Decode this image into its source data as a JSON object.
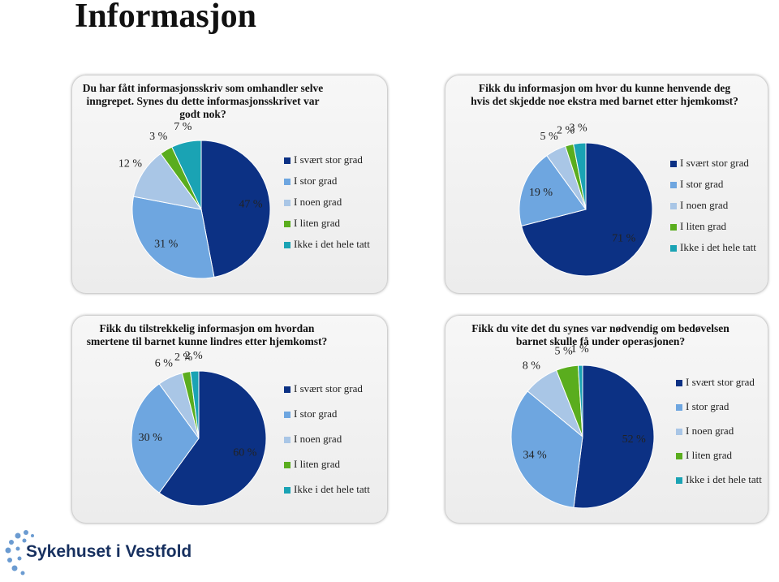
{
  "title": "Informasjon",
  "logo": "Sykehuset i Vestfold",
  "chart_data": [
    {
      "type": "pie",
      "title": "Du har fått informasjonsskriv som omhandler selve inngrepet. Synes du dette informasjonsskrivet var godt nok?",
      "categories": [
        "I svært stor grad",
        "I stor grad",
        "I noen grad",
        "I liten grad",
        "Ikke i det hele tatt"
      ],
      "values": [
        47,
        31,
        12,
        3,
        7
      ],
      "value_labels": [
        "47 %",
        "31 %",
        "12 %",
        "3 %",
        "7 %"
      ],
      "colors": [
        "#0c3184",
        "#6ea6e0",
        "#a9c6e6",
        "#5aad1e",
        "#1aa3b4"
      ]
    },
    {
      "type": "pie",
      "title": "Fikk du informasjon om hvor du kunne henvende deg hvis det skjedde noe ekstra med barnet etter hjemkomst?",
      "categories": [
        "I svært stor grad",
        "I stor grad",
        "I noen grad",
        "I liten grad",
        "Ikke i det hele tatt"
      ],
      "values": [
        71,
        19,
        5,
        2,
        3
      ],
      "value_labels": [
        "71 %",
        "19 %",
        "5 %",
        "2 %",
        "3 %"
      ],
      "colors": [
        "#0c3184",
        "#6ea6e0",
        "#a9c6e6",
        "#5aad1e",
        "#1aa3b4"
      ]
    },
    {
      "type": "pie",
      "title": "Fikk du tilstrekkelig informasjon om hvordan smertene til barnet kunne lindres etter hjemkomst?",
      "categories": [
        "I svært stor grad",
        "I stor grad",
        "I noen grad",
        "I liten grad",
        "Ikke i det hele tatt"
      ],
      "values": [
        60,
        30,
        6,
        2,
        2
      ],
      "value_labels": [
        "60 %",
        "30 %",
        "6 %",
        "2 %",
        "2 %"
      ],
      "colors": [
        "#0c3184",
        "#6ea6e0",
        "#a9c6e6",
        "#5aad1e",
        "#1aa3b4"
      ]
    },
    {
      "type": "pie",
      "title": "Fikk du vite det du synes var nødvendig om bedøvelsen barnet skulle få under operasjonen?",
      "categories": [
        "I svært stor grad",
        "I stor grad",
        "I noen grad",
        "I liten grad",
        "Ikke i det hele tatt"
      ],
      "values": [
        52,
        34,
        8,
        5,
        1
      ],
      "value_labels": [
        "52 %",
        "34 %",
        "8 %",
        "5 %",
        "1 %"
      ],
      "colors": [
        "#0c3184",
        "#6ea6e0",
        "#a9c6e6",
        "#5aad1e",
        "#1aa3b4"
      ]
    }
  ]
}
